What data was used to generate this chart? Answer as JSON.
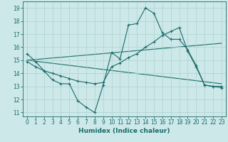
{
  "xlabel": "Humidex (Indice chaleur)",
  "bg_color": "#cde8e8",
  "line_color": "#1a6b6b",
  "grid_color": "#aed0d0",
  "xlim": [
    -0.5,
    23.5
  ],
  "ylim": [
    10.7,
    19.5
  ],
  "yticks": [
    11,
    12,
    13,
    14,
    15,
    16,
    17,
    18,
    19
  ],
  "xticks": [
    0,
    1,
    2,
    3,
    4,
    5,
    6,
    7,
    8,
    9,
    10,
    11,
    12,
    13,
    14,
    15,
    16,
    17,
    18,
    19,
    20,
    21,
    22,
    23
  ],
  "series1_x": [
    0,
    1,
    2,
    3,
    4,
    5,
    6,
    7,
    8,
    9,
    10,
    11,
    12,
    13,
    14,
    15,
    16,
    17,
    18,
    19,
    20,
    21,
    22,
    23
  ],
  "series1_y": [
    15.5,
    14.9,
    14.2,
    13.5,
    13.2,
    13.2,
    11.9,
    11.4,
    11.0,
    13.1,
    15.6,
    15.1,
    17.7,
    17.8,
    19.0,
    18.6,
    17.1,
    16.6,
    16.6,
    15.8,
    14.6,
    13.1,
    13.0,
    13.0
  ],
  "series2_x": [
    0,
    1,
    2,
    3,
    4,
    5,
    6,
    7,
    8,
    9,
    10,
    11,
    12,
    13,
    14,
    15,
    16,
    17,
    18,
    19,
    20,
    21,
    22,
    23
  ],
  "series2_y": [
    14.9,
    14.5,
    14.2,
    14.0,
    13.8,
    13.6,
    13.4,
    13.3,
    13.2,
    13.3,
    14.5,
    14.8,
    15.2,
    15.5,
    16.0,
    16.4,
    16.9,
    17.2,
    17.5,
    15.7,
    14.5,
    13.1,
    13.0,
    12.9
  ],
  "series3_x": [
    0,
    23
  ],
  "series3_y": [
    15.0,
    16.3
  ],
  "series4_x": [
    0,
    23
  ],
  "series4_y": [
    15.0,
    13.2
  ]
}
